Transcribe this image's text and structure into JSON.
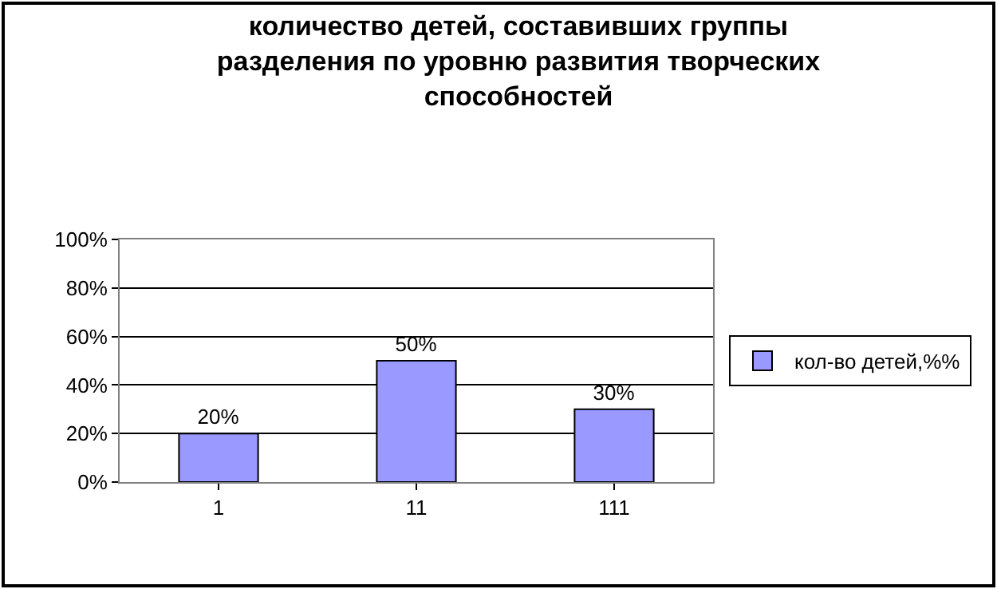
{
  "chart_data": {
    "type": "bar",
    "title": "количество детей, составивших группы\nразделения по уровню развития творческих\nспособностей",
    "categories": [
      "1",
      "11",
      "111"
    ],
    "series": [
      {
        "name": "кол-во детей,%%",
        "color": "#9999ff",
        "values": [
          20,
          50,
          30
        ]
      }
    ],
    "value_labels": [
      "20%",
      "50%",
      "30%"
    ],
    "ylim": [
      0,
      100
    ],
    "yticks": [
      {
        "value": 0,
        "label": "0%"
      },
      {
        "value": 20,
        "label": "20%"
      },
      {
        "value": 40,
        "label": "40%"
      },
      {
        "value": 60,
        "label": "60%"
      },
      {
        "value": 80,
        "label": "80%"
      },
      {
        "value": 100,
        "label": "100%"
      }
    ],
    "grid": "y",
    "legend": "right"
  }
}
